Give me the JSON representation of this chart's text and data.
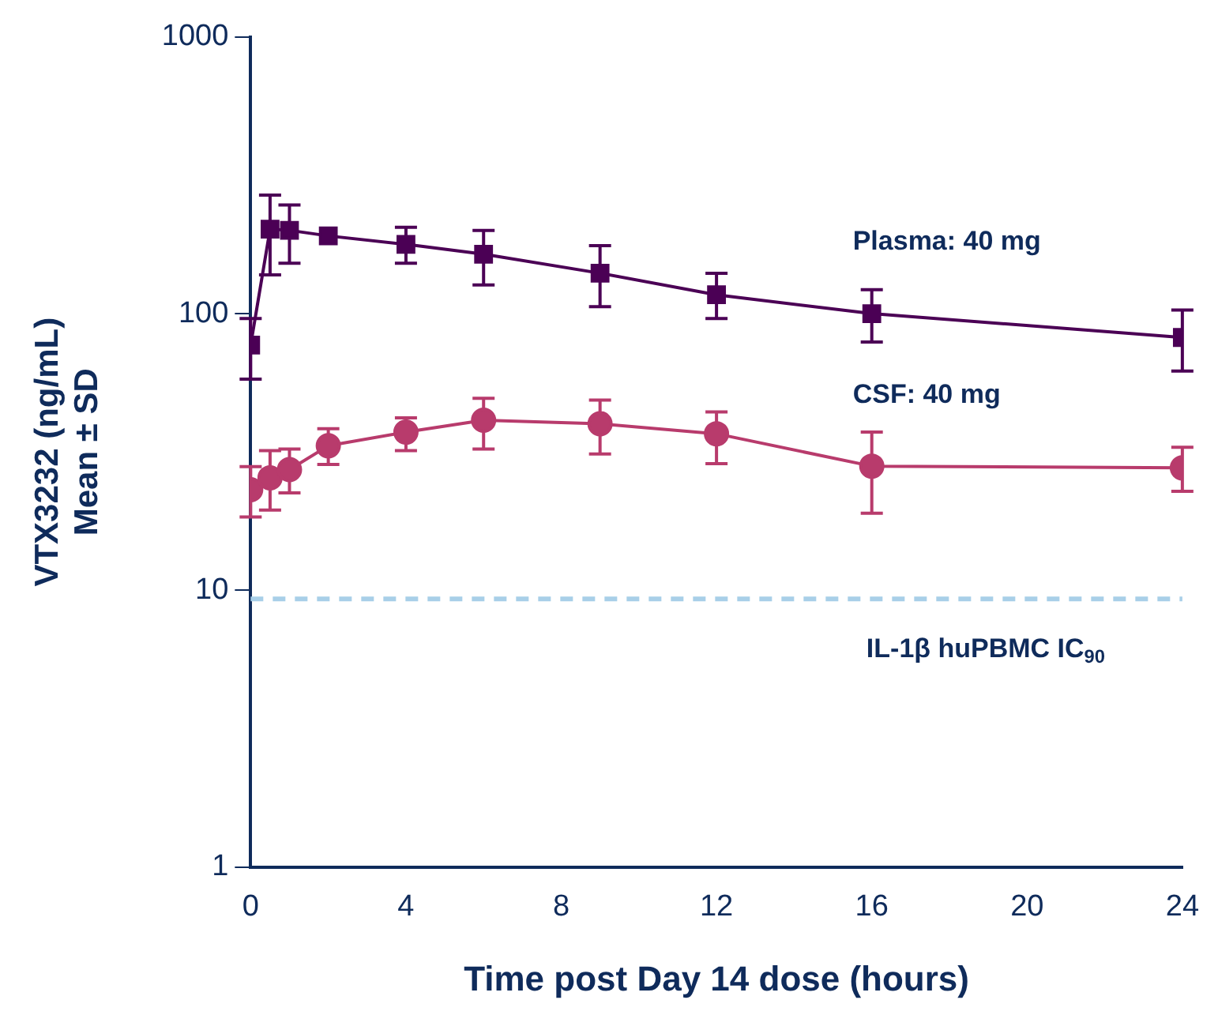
{
  "chart_data": {
    "type": "line",
    "xlabel": "Time post Day 14 dose (hours)",
    "ylabel": "VTX3232 (ng/mL)\nMean ± SD",
    "xlim": [
      0,
      24
    ],
    "xticks": [
      0,
      4,
      8,
      12,
      16,
      20,
      24
    ],
    "ylim": [
      1,
      1000
    ],
    "yticks": [
      1,
      10,
      100,
      1000
    ],
    "log": true,
    "grid": false,
    "legend": false,
    "series": [
      {
        "name": "Plasma: 40 mg",
        "color": "#4b0055",
        "marker": "square",
        "x": [
          0,
          0.5,
          1,
          2,
          4,
          6,
          9,
          12,
          16,
          24
        ],
        "values": [
          77,
          202,
          200,
          191,
          178,
          164,
          140,
          117,
          100,
          82
        ],
        "errors": [
          [
            58,
            96
          ],
          [
            138,
            268
          ],
          [
            152,
            247
          ],
          null,
          [
            152,
            205
          ],
          [
            127,
            200
          ],
          [
            106,
            176
          ],
          [
            96,
            140
          ],
          [
            79,
            122
          ],
          [
            62,
            103
          ]
        ]
      },
      {
        "name": "CSF: 40 mg",
        "color": "#b83b6c",
        "marker": "circle",
        "x": [
          0,
          0.5,
          1,
          2,
          4,
          6,
          9,
          12,
          16,
          24
        ],
        "values": [
          23.1,
          25.5,
          27.3,
          33.3,
          37.3,
          41.2,
          40,
          36.8,
          28.1,
          27.7
        ],
        "errors": [
          [
            18.4,
            28
          ],
          [
            19.5,
            32
          ],
          [
            22.5,
            32.4
          ],
          [
            28.5,
            38.4
          ],
          [
            32,
            42
          ],
          [
            32.4,
            49.4
          ],
          [
            31.1,
            48.7
          ],
          [
            28.7,
            44.1
          ],
          [
            19,
            37.3
          ],
          [
            22.8,
            32.9
          ]
        ]
      }
    ],
    "ref_lines": [
      {
        "axis": "y",
        "value": 9.3,
        "label": "IL-1β huPBMC IC$_{90}$",
        "color": "#a8cfe8",
        "line_style": "dashed"
      }
    ]
  }
}
